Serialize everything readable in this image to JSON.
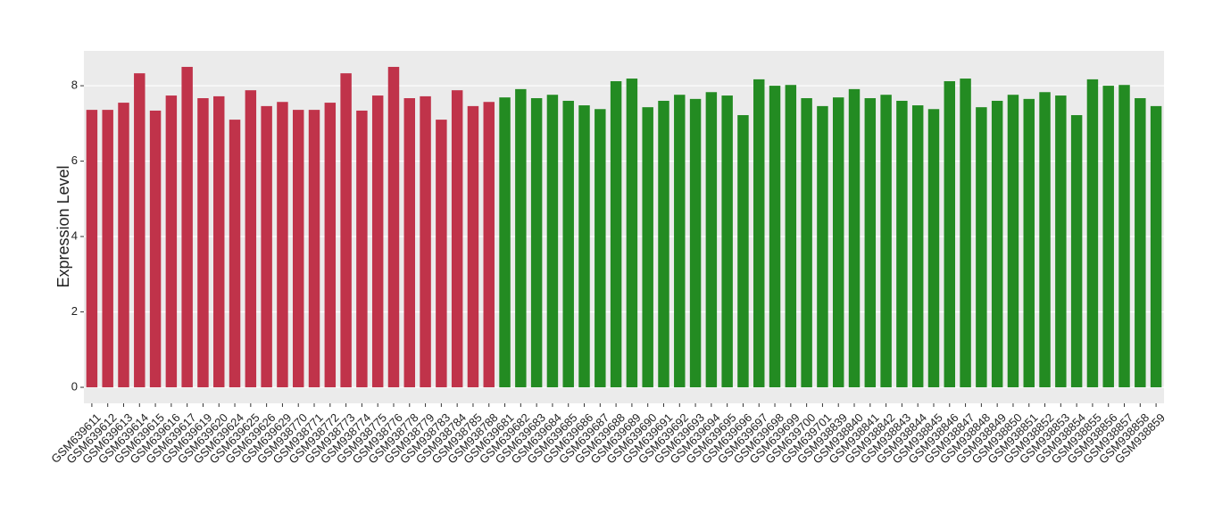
{
  "chart_data": {
    "type": "bar",
    "y_label": "Expression Level",
    "categories": [
      "GSM639611",
      "GSM639612",
      "GSM639613",
      "GSM639614",
      "GSM639615",
      "GSM639616",
      "GSM639617",
      "GSM639619",
      "GSM639620",
      "GSM639624",
      "GSM639625",
      "GSM639626",
      "GSM639629",
      "GSM938770",
      "GSM938771",
      "GSM938772",
      "GSM938773",
      "GSM938774",
      "GSM938775",
      "GSM938776",
      "GSM938778",
      "GSM938779",
      "GSM938783",
      "GSM938784",
      "GSM938785",
      "GSM938788",
      "GSM639681",
      "GSM639682",
      "GSM639683",
      "GSM639684",
      "GSM639685",
      "GSM639686",
      "GSM639687",
      "GSM639688",
      "GSM639689",
      "GSM639690",
      "GSM639691",
      "GSM639692",
      "GSM639693",
      "GSM639694",
      "GSM639695",
      "GSM639696",
      "GSM639697",
      "GSM639698",
      "GSM639699",
      "GSM639700",
      "GSM639701",
      "GSM938839",
      "GSM938840",
      "GSM938841",
      "GSM938842",
      "GSM938843",
      "GSM938844",
      "GSM938845",
      "GSM938846",
      "GSM938847",
      "GSM938848",
      "GSM938849",
      "GSM938850",
      "GSM938851",
      "GSM938852",
      "GSM938853",
      "GSM938854",
      "GSM938855",
      "GSM938856",
      "GSM938857",
      "GSM938858",
      "GSM938859"
    ],
    "values": [
      7.36,
      7.36,
      7.55,
      8.33,
      7.34,
      7.74,
      8.5,
      7.67,
      7.72,
      7.1,
      7.88,
      7.46,
      7.57,
      7.36,
      7.36,
      7.55,
      8.33,
      7.34,
      7.74,
      8.5,
      7.67,
      7.72,
      7.1,
      7.88,
      7.46,
      7.57,
      7.69,
      7.91,
      7.67,
      7.76,
      7.6,
      7.48,
      7.38,
      8.12,
      8.19,
      7.43,
      7.6,
      7.76,
      7.65,
      7.83,
      7.74,
      7.22,
      8.17,
      8.0,
      8.02,
      7.67,
      7.46,
      7.69,
      7.91,
      7.67,
      7.76,
      7.6,
      7.48,
      7.38,
      8.12,
      8.19,
      7.43,
      7.6,
      7.76,
      7.65,
      7.83,
      7.74,
      7.22,
      8.17,
      8.0,
      8.02,
      7.67,
      7.46
    ],
    "colors": [
      "#c0334a",
      "#c0334a",
      "#c0334a",
      "#c0334a",
      "#c0334a",
      "#c0334a",
      "#c0334a",
      "#c0334a",
      "#c0334a",
      "#c0334a",
      "#c0334a",
      "#c0334a",
      "#c0334a",
      "#c0334a",
      "#c0334a",
      "#c0334a",
      "#c0334a",
      "#c0334a",
      "#c0334a",
      "#c0334a",
      "#c0334a",
      "#c0334a",
      "#c0334a",
      "#c0334a",
      "#c0334a",
      "#c0334a",
      "#238b22",
      "#238b22",
      "#238b22",
      "#238b22",
      "#238b22",
      "#238b22",
      "#238b22",
      "#238b22",
      "#238b22",
      "#238b22",
      "#238b22",
      "#238b22",
      "#238b22",
      "#238b22",
      "#238b22",
      "#238b22",
      "#238b22",
      "#238b22",
      "#238b22",
      "#238b22",
      "#238b22",
      "#238b22",
      "#238b22",
      "#238b22",
      "#238b22",
      "#238b22",
      "#238b22",
      "#238b22",
      "#238b22",
      "#238b22",
      "#238b22",
      "#238b22",
      "#238b22",
      "#238b22",
      "#238b22",
      "#238b22",
      "#238b22",
      "#238b22",
      "#238b22",
      "#238b22",
      "#238b22",
      "#238b22"
    ],
    "ylim": [
      -0.425,
      8.925
    ],
    "yticks": [
      0,
      2,
      4,
      6,
      8
    ],
    "grid": true
  }
}
